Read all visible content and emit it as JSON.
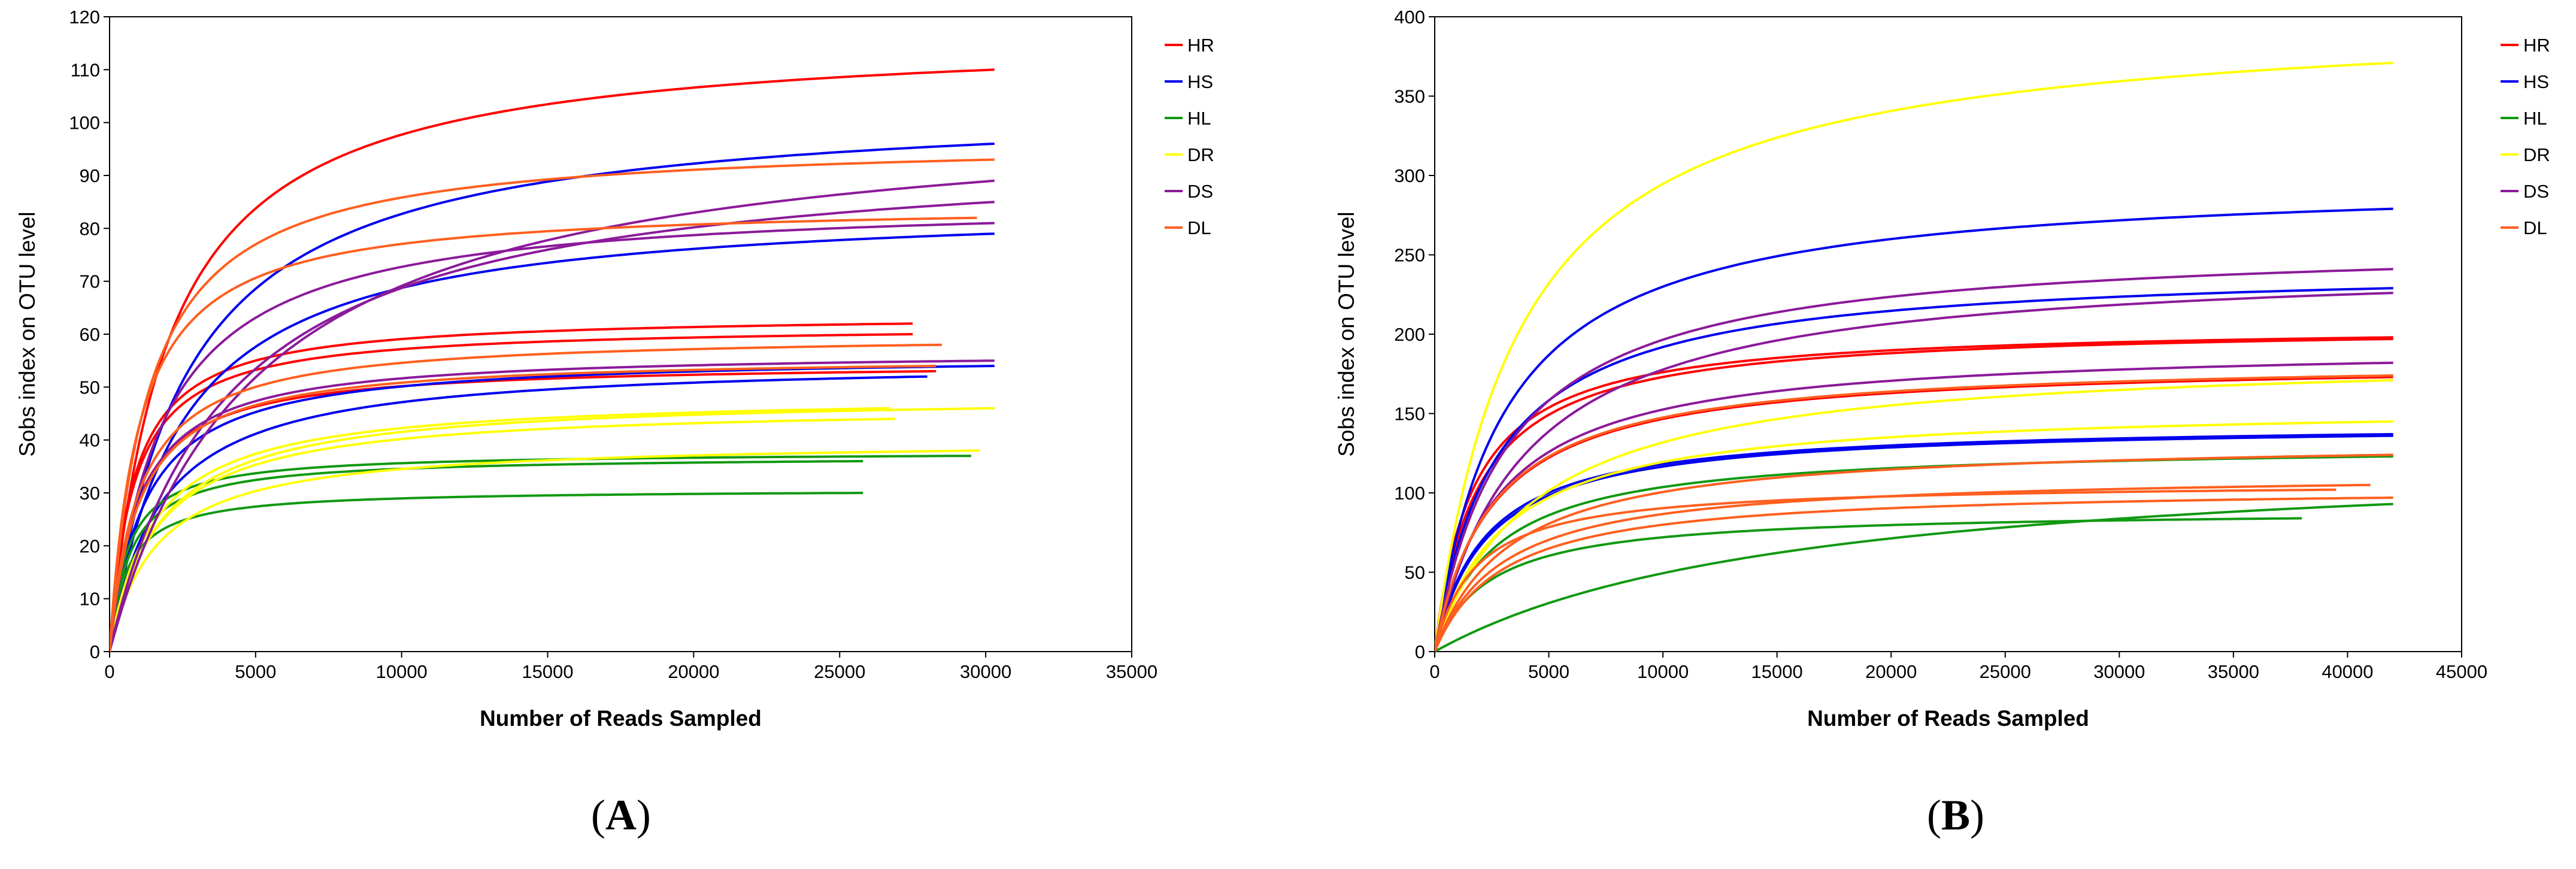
{
  "chart_data": [
    {
      "panel": "A",
      "type": "line",
      "title": "",
      "xlabel": "Number of Reads Sampled",
      "ylabel": "Sobs index on OTU level",
      "xlim": [
        0,
        35000
      ],
      "ylim": [
        0,
        120
      ],
      "xticks": [
        0,
        5000,
        10000,
        15000,
        20000,
        25000,
        30000,
        35000
      ],
      "yticks": [
        0,
        10,
        20,
        30,
        40,
        50,
        60,
        70,
        80,
        90,
        100,
        110,
        120
      ],
      "legend_position": "right",
      "groups": [
        {
          "name": "HR",
          "color": "#ff0000"
        },
        {
          "name": "HS",
          "color": "#0000ee"
        },
        {
          "name": "HL",
          "color": "#119911"
        },
        {
          "name": "DR",
          "color": "#ffff00"
        },
        {
          "name": "DS",
          "color": "#8b1a9a"
        },
        {
          "name": "DL",
          "color": "#ff5f1f"
        }
      ],
      "series": [
        {
          "group": "HR",
          "end_x": 30300,
          "end_y": 110,
          "k": 2000
        },
        {
          "group": "HR",
          "end_x": 27500,
          "end_y": 62,
          "k": 800
        },
        {
          "group": "HR",
          "end_x": 27500,
          "end_y": 60,
          "k": 800
        },
        {
          "group": "HR",
          "end_x": 28300,
          "end_y": 53,
          "k": 900
        },
        {
          "group": "HS",
          "end_x": 30300,
          "end_y": 96,
          "k": 2600
        },
        {
          "group": "HS",
          "end_x": 30300,
          "end_y": 79,
          "k": 2400
        },
        {
          "group": "HS",
          "end_x": 30300,
          "end_y": 54,
          "k": 1200
        },
        {
          "group": "HS",
          "end_x": 28000,
          "end_y": 52,
          "k": 1700
        },
        {
          "group": "HL",
          "end_x": 29500,
          "end_y": 37,
          "k": 600
        },
        {
          "group": "HL",
          "end_x": 25800,
          "end_y": 36,
          "k": 700
        },
        {
          "group": "HL",
          "end_x": 25800,
          "end_y": 30,
          "k": 600
        },
        {
          "group": "DR",
          "end_x": 26700,
          "end_y": 46,
          "k": 1500
        },
        {
          "group": "DR",
          "end_x": 30300,
          "end_y": 46,
          "k": 1700
        },
        {
          "group": "DR",
          "end_x": 26900,
          "end_y": 44,
          "k": 1600
        },
        {
          "group": "DR",
          "end_x": 29800,
          "end_y": 38,
          "k": 1600
        },
        {
          "group": "DS",
          "end_x": 30300,
          "end_y": 89,
          "k": 5000
        },
        {
          "group": "DS",
          "end_x": 30300,
          "end_y": 85,
          "k": 4000
        },
        {
          "group": "DS",
          "end_x": 30300,
          "end_y": 81,
          "k": 1800
        },
        {
          "group": "DS",
          "end_x": 30300,
          "end_y": 55,
          "k": 1000
        },
        {
          "group": "DL",
          "end_x": 30300,
          "end_y": 93,
          "k": 1300
        },
        {
          "group": "DL",
          "end_x": 29700,
          "end_y": 82,
          "k": 1000
        },
        {
          "group": "DL",
          "end_x": 28500,
          "end_y": 58,
          "k": 1000
        },
        {
          "group": "DL",
          "end_x": 28300,
          "end_y": 54,
          "k": 1000
        }
      ]
    },
    {
      "panel": "B",
      "type": "line",
      "title": "",
      "xlabel": "Number of Reads Sampled",
      "ylabel": "Sobs index on OTU level",
      "xlim": [
        0,
        45000
      ],
      "ylim": [
        0,
        400
      ],
      "xticks": [
        0,
        5000,
        10000,
        15000,
        20000,
        25000,
        30000,
        35000,
        40000,
        45000
      ],
      "yticks": [
        0,
        50,
        100,
        150,
        200,
        250,
        300,
        350,
        400
      ],
      "legend_position": "right",
      "groups": [
        {
          "name": "HR",
          "color": "#ff0000"
        },
        {
          "name": "HS",
          "color": "#0000ee"
        },
        {
          "name": "HL",
          "color": "#119911"
        },
        {
          "name": "DR",
          "color": "#ffff00"
        },
        {
          "name": "DS",
          "color": "#8b1a9a"
        },
        {
          "name": "DL",
          "color": "#ff5f1f"
        }
      ],
      "series": [
        {
          "group": "HR",
          "end_x": 42000,
          "end_y": 198,
          "k": 1700
        },
        {
          "group": "HR",
          "end_x": 42000,
          "end_y": 197,
          "k": 1900
        },
        {
          "group": "HR",
          "end_x": 42000,
          "end_y": 173,
          "k": 2500
        },
        {
          "group": "HS",
          "end_x": 42000,
          "end_y": 279,
          "k": 3000
        },
        {
          "group": "HS",
          "end_x": 42000,
          "end_y": 229,
          "k": 2700
        },
        {
          "group": "HS",
          "end_x": 42000,
          "end_y": 137,
          "k": 2200
        },
        {
          "group": "HS",
          "end_x": 42000,
          "end_y": 136,
          "k": 2300
        },
        {
          "group": "HL",
          "end_x": 42000,
          "end_y": 123,
          "k": 2600
        },
        {
          "group": "HL",
          "end_x": 38000,
          "end_y": 84,
          "k": 2400
        },
        {
          "group": "HL",
          "end_x": 42000,
          "end_y": 93,
          "k": 16000
        },
        {
          "group": "DR",
          "end_x": 42000,
          "end_y": 371,
          "k": 3700
        },
        {
          "group": "DR",
          "end_x": 42000,
          "end_y": 171,
          "k": 4300
        },
        {
          "group": "DR",
          "end_x": 42000,
          "end_y": 145,
          "k": 3000
        },
        {
          "group": "DS",
          "end_x": 42000,
          "end_y": 241,
          "k": 3200
        },
        {
          "group": "DS",
          "end_x": 42000,
          "end_y": 226,
          "k": 3900
        },
        {
          "group": "DS",
          "end_x": 42000,
          "end_y": 182,
          "k": 2700
        },
        {
          "group": "DL",
          "end_x": 42000,
          "end_y": 124,
          "k": 3300
        },
        {
          "group": "DL",
          "end_x": 41000,
          "end_y": 105,
          "k": 3000
        },
        {
          "group": "DL",
          "end_x": 39500,
          "end_y": 102,
          "k": 1800
        },
        {
          "group": "DL",
          "end_x": 42000,
          "end_y": 97,
          "k": 3000
        },
        {
          "group": "DL",
          "end_x": 42000,
          "end_y": 174,
          "k": 2500
        }
      ]
    }
  ],
  "panel_labels": [
    "A",
    "B"
  ]
}
